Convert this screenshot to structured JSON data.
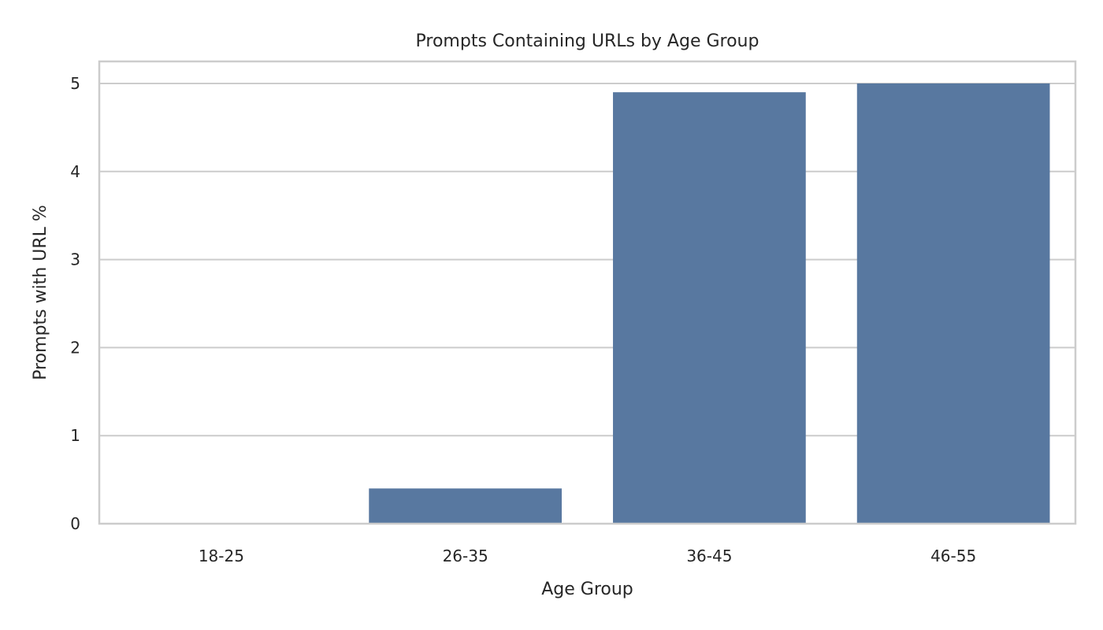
{
  "chart_data": {
    "type": "bar",
    "title": "Prompts Containing URLs by Age Group",
    "xlabel": "Age Group",
    "ylabel": "Prompts with URL %",
    "categories": [
      "18-25",
      "26-35",
      "36-45",
      "46-55"
    ],
    "values": [
      0.0,
      0.4,
      4.9,
      5.0
    ],
    "ylim": [
      0,
      5.25
    ],
    "yticks": [
      0,
      1,
      2,
      3,
      4,
      5
    ],
    "grid": true,
    "legend": "none",
    "colors": {
      "bar": "#5878a0",
      "grid": "#cccccc",
      "frame": "#cccccc"
    }
  }
}
